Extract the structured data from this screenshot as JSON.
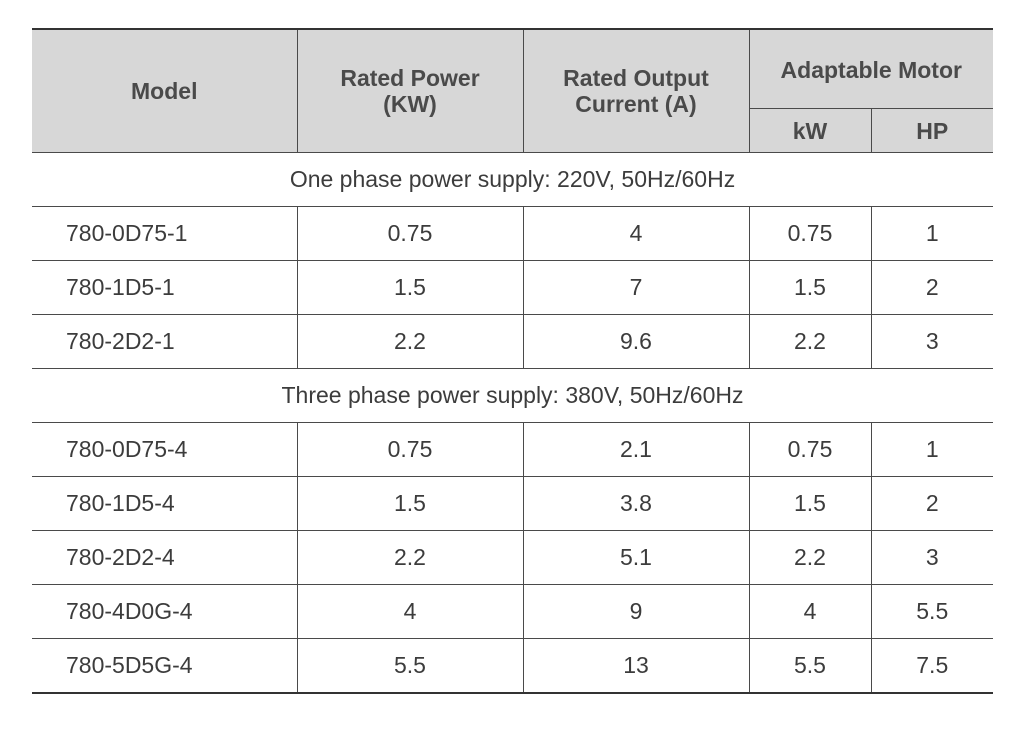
{
  "headers": {
    "model": "Model",
    "rated_power_line1": "Rated Power",
    "rated_power_line2": "(KW)",
    "rated_current_line1": "Rated Output",
    "rated_current_line2": "Current (A)",
    "adaptable_motor": "Adaptable Motor",
    "kw": "kW",
    "hp": "HP"
  },
  "sections": [
    {
      "title": "One phase power supply: 220V, 50Hz/60Hz",
      "rows": [
        {
          "model": "780-0D75-1",
          "power": "0.75",
          "current": "4",
          "kw": "0.75",
          "hp": "1"
        },
        {
          "model": "780-1D5-1",
          "power": "1.5",
          "current": "7",
          "kw": "1.5",
          "hp": "2"
        },
        {
          "model": "780-2D2-1",
          "power": "2.2",
          "current": "9.6",
          "kw": "2.2",
          "hp": "3"
        }
      ]
    },
    {
      "title": "Three phase power supply: 380V, 50Hz/60Hz",
      "rows": [
        {
          "model": "780-0D75-4",
          "power": "0.75",
          "current": "2.1",
          "kw": "0.75",
          "hp": "1"
        },
        {
          "model": "780-1D5-4",
          "power": "1.5",
          "current": "3.8",
          "kw": "1.5",
          "hp": "2"
        },
        {
          "model": "780-2D2-4",
          "power": "2.2",
          "current": "5.1",
          "kw": "2.2",
          "hp": "3"
        },
        {
          "model": "780-4D0G-4",
          "power": "4",
          "current": "9",
          "kw": "4",
          "hp": "5.5"
        },
        {
          "model": "780-5D5G-4",
          "power": "5.5",
          "current": "13",
          "kw": "5.5",
          "hp": "7.5"
        }
      ]
    }
  ]
}
